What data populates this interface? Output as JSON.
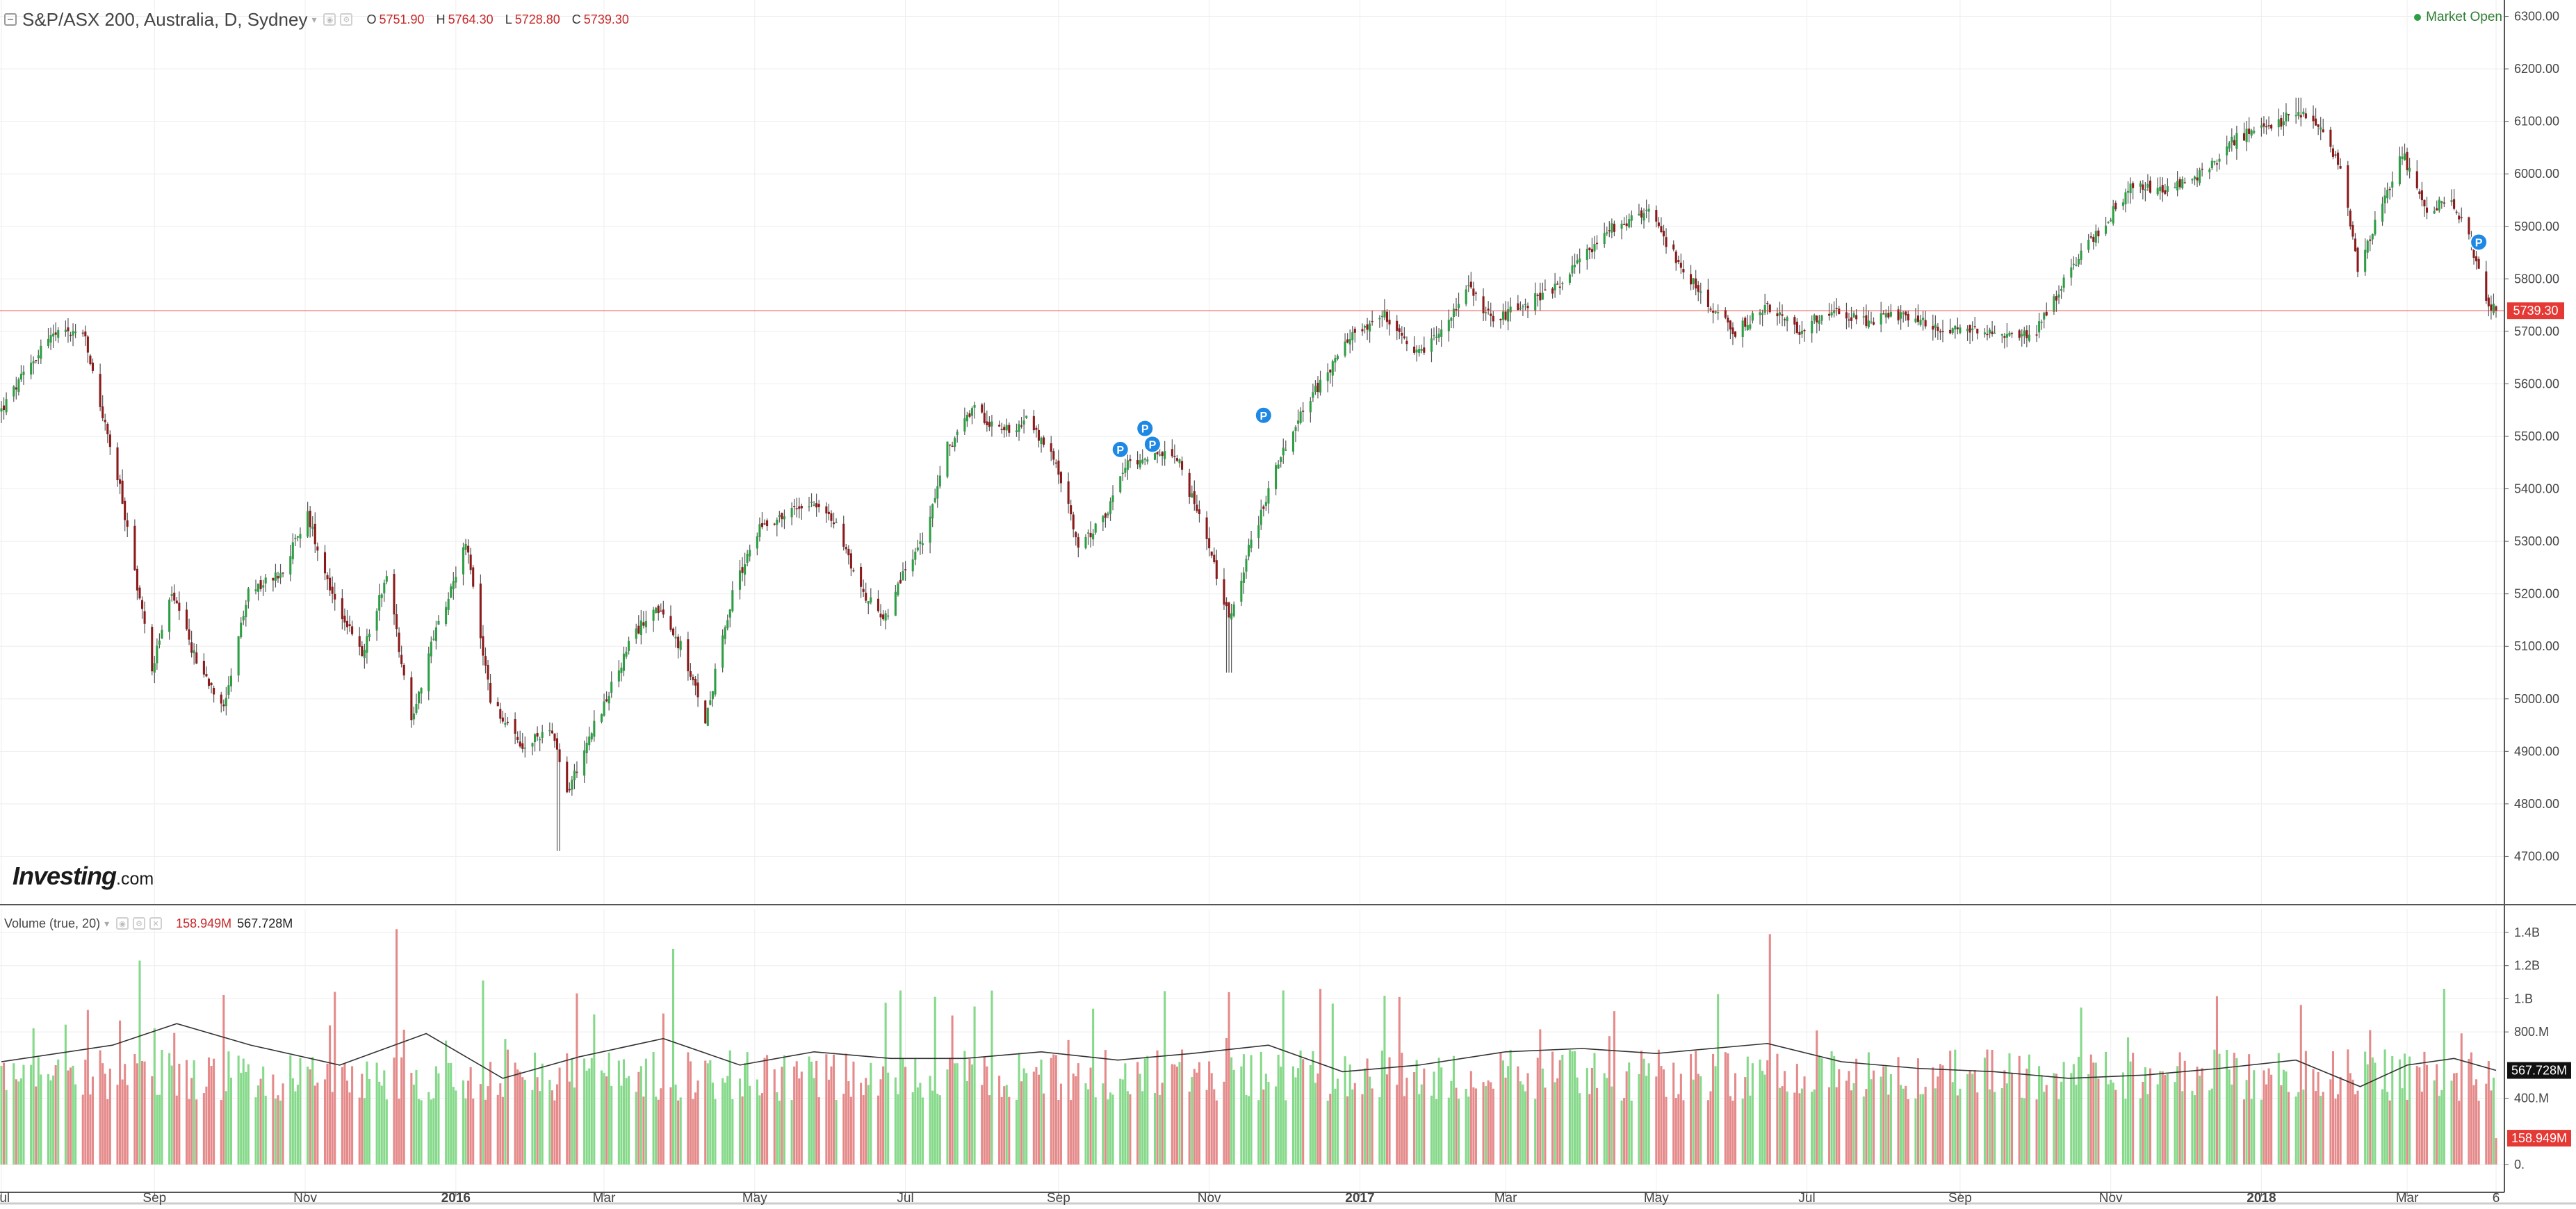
{
  "header": {
    "symbol_title": "S&P/ASX 200, Australia, D, Sydney",
    "open_label": "O",
    "open_value": "5751.90",
    "high_label": "H",
    "high_value": "5764.30",
    "low_label": "L",
    "low_value": "5728.80",
    "close_label": "C",
    "close_value": "5739.30",
    "market_status": "Market Open"
  },
  "volume_legend": {
    "title": "Volume (true, 20)",
    "value_current": "158.949M",
    "value_ma": "567.728M"
  },
  "logo": {
    "main": "Investing",
    "suffix": ".com"
  },
  "colors": {
    "up": "#2e9e44",
    "down": "#8b1a1a",
    "vol_up": "#86d98a",
    "vol_down": "#e58a8a",
    "last_price": "#e53935",
    "marker": "#1e88e5",
    "grid": "#eeeeee"
  },
  "chart_data": {
    "type": "candlestick",
    "price_axis": {
      "ticks": [
        "6300.00",
        "6200.00",
        "6100.00",
        "6000.00",
        "5900.00",
        "5800.00",
        "5700.00",
        "5600.00",
        "5500.00",
        "5400.00",
        "5300.00",
        "5200.00",
        "5100.00",
        "5000.00",
        "4900.00",
        "4800.00",
        "4700.00"
      ],
      "range": [
        4690,
        6310
      ],
      "last_price": 5739.3,
      "last_price_label": "5739.30"
    },
    "volume_axis": {
      "ticks": [
        "1.4B",
        "1.2B",
        "1.B",
        "800.M",
        "400.M",
        "0."
      ],
      "tick_values": [
        1400,
        1200,
        1000,
        800,
        400,
        0
      ],
      "range_millions": [
        0,
        1430
      ],
      "ma_label": "567.728M",
      "current_label": "158.949M",
      "ma_value": 567.728,
      "current_value": 158.949
    },
    "time_axis": {
      "labels": [
        "Jul",
        "Sep",
        "Nov",
        "2016",
        "Mar",
        "May",
        "Jul",
        "Sep",
        "Nov",
        "2017",
        "Mar",
        "May",
        "Jul",
        "Sep",
        "Nov",
        "2018",
        "Mar",
        "6"
      ],
      "bold_labels": [
        "2016",
        "2017",
        "2018"
      ],
      "label_dates": [
        "2015-07-01",
        "2015-09-01",
        "2015-11-01",
        "2016-01-01",
        "2016-03-01",
        "2016-05-01",
        "2016-07-01",
        "2016-09-01",
        "2016-11-01",
        "2017-01-01",
        "2017-03-01",
        "2017-05-01",
        "2017-07-01",
        "2017-09-01",
        "2017-11-01",
        "2018-01-01",
        "2018-03-01",
        "2018-04-06"
      ],
      "range": [
        "2015-07-01",
        "2018-04-06"
      ]
    },
    "price_path": [
      [
        "2015-07-01",
        5550
      ],
      [
        "2015-07-20",
        5690
      ],
      [
        "2015-08-03",
        5700
      ],
      [
        "2015-08-18",
        5400
      ],
      [
        "2015-08-31",
        5060
      ],
      [
        "2015-09-08",
        5200
      ],
      [
        "2015-09-18",
        5070
      ],
      [
        "2015-09-29",
        4990
      ],
      [
        "2015-10-09",
        5200
      ],
      [
        "2015-10-22",
        5240
      ],
      [
        "2015-11-02",
        5350
      ],
      [
        "2015-11-12",
        5200
      ],
      [
        "2015-11-24",
        5080
      ],
      [
        "2015-12-04",
        5240
      ],
      [
        "2015-12-14",
        4960
      ],
      [
        "2015-12-22",
        5100
      ],
      [
        "2016-01-05",
        5300
      ],
      [
        "2016-01-15",
        5000
      ],
      [
        "2016-01-28",
        4900
      ],
      [
        "2016-02-08",
        4950
      ],
      [
        "2016-02-15",
        4820
      ],
      [
        "2016-02-24",
        4930
      ],
      [
        "2016-03-02",
        5000
      ],
      [
        "2016-03-11",
        5100
      ],
      [
        "2016-03-21",
        5180
      ],
      [
        "2016-04-01",
        5100
      ],
      [
        "2016-04-11",
        4960
      ],
      [
        "2016-04-22",
        5200
      ],
      [
        "2016-05-03",
        5330
      ],
      [
        "2016-05-13",
        5350
      ],
      [
        "2016-05-24",
        5380
      ],
      [
        "2016-06-03",
        5330
      ],
      [
        "2016-06-14",
        5200
      ],
      [
        "2016-06-24",
        5150
      ],
      [
        "2016-06-30",
        5240
      ],
      [
        "2016-07-08",
        5300
      ],
      [
        "2016-07-18",
        5480
      ],
      [
        "2016-07-29",
        5550
      ],
      [
        "2016-08-09",
        5510
      ],
      [
        "2016-08-19",
        5530
      ],
      [
        "2016-08-31",
        5450
      ],
      [
        "2016-09-09",
        5290
      ],
      [
        "2016-09-19",
        5340
      ],
      [
        "2016-09-29",
        5450
      ],
      [
        "2016-10-10",
        5470
      ],
      [
        "2016-10-20",
        5450
      ],
      [
        "2016-10-31",
        5300
      ],
      [
        "2016-11-09",
        5150
      ],
      [
        "2016-11-18",
        5300
      ],
      [
        "2016-11-29",
        5450
      ],
      [
        "2016-12-08",
        5550
      ],
      [
        "2016-12-19",
        5620
      ],
      [
        "2016-12-30",
        5700
      ],
      [
        "2017-01-11",
        5730
      ],
      [
        "2017-01-23",
        5650
      ],
      [
        "2017-02-03",
        5700
      ],
      [
        "2017-02-14",
        5780
      ],
      [
        "2017-02-24",
        5720
      ],
      [
        "2017-03-08",
        5750
      ],
      [
        "2017-03-20",
        5780
      ],
      [
        "2017-04-03",
        5850
      ],
      [
        "2017-04-14",
        5900
      ],
      [
        "2017-04-27",
        5930
      ],
      [
        "2017-05-09",
        5840
      ],
      [
        "2017-05-22",
        5750
      ],
      [
        "2017-06-02",
        5700
      ],
      [
        "2017-06-15",
        5750
      ],
      [
        "2017-06-27",
        5700
      ],
      [
        "2017-07-10",
        5740
      ],
      [
        "2017-07-24",
        5720
      ],
      [
        "2017-08-07",
        5730
      ],
      [
        "2017-08-21",
        5710
      ],
      [
        "2017-09-04",
        5700
      ],
      [
        "2017-09-18",
        5690
      ],
      [
        "2017-10-02",
        5700
      ],
      [
        "2017-10-16",
        5820
      ],
      [
        "2017-10-30",
        5910
      ],
      [
        "2017-11-10",
        5980
      ],
      [
        "2017-11-24",
        5970
      ],
      [
        "2017-12-08",
        6000
      ],
      [
        "2017-12-22",
        6070
      ],
      [
        "2018-01-05",
        6090
      ],
      [
        "2018-01-16",
        6120
      ],
      [
        "2018-01-25",
        6080
      ],
      [
        "2018-02-02",
        6020
      ],
      [
        "2018-02-09",
        5820
      ],
      [
        "2018-02-20",
        5950
      ],
      [
        "2018-02-27",
        6040
      ],
      [
        "2018-03-09",
        5930
      ],
      [
        "2018-03-19",
        5950
      ],
      [
        "2018-03-26",
        5880
      ],
      [
        "2018-04-02",
        5760
      ],
      [
        "2018-04-06",
        5739
      ]
    ],
    "wick_extremes": [
      [
        "2016-02-12",
        4710
      ],
      [
        "2016-11-09",
        5050
      ],
      [
        "2018-01-16",
        6145
      ]
    ],
    "event_markers": [
      {
        "date": "2016-09-26",
        "price": 5475,
        "label": "P"
      },
      {
        "date": "2016-10-06",
        "price": 5515,
        "label": "P"
      },
      {
        "date": "2016-10-09",
        "price": 5485,
        "label": "P"
      },
      {
        "date": "2016-11-23",
        "price": 5540,
        "label": "P"
      },
      {
        "date": "2018-03-30",
        "price": 5870,
        "label": "P"
      }
    ],
    "volume_tall_bars": [
      [
        "2015-08-26",
        1230,
        "up"
      ],
      [
        "2015-12-08",
        1420,
        "down"
      ],
      [
        "2016-01-12",
        1110,
        "up"
      ],
      [
        "2016-03-29",
        1300,
        "up"
      ],
      [
        "2016-06-29",
        1050,
        "up"
      ],
      [
        "2016-11-09",
        1040,
        "down"
      ],
      [
        "2016-12-16",
        1060,
        "down"
      ],
      [
        "2017-06-16",
        1390,
        "down"
      ],
      [
        "2018-03-16",
        1060,
        "up"
      ]
    ],
    "volume_base_millions": 620,
    "volume_ma_millions": [
      [
        "2015-07-01",
        620
      ],
      [
        "2015-08-15",
        720
      ],
      [
        "2015-09-10",
        850
      ],
      [
        "2015-10-10",
        720
      ],
      [
        "2015-11-15",
        600
      ],
      [
        "2015-12-20",
        790
      ],
      [
        "2016-01-20",
        520
      ],
      [
        "2016-02-20",
        650
      ],
      [
        "2016-03-25",
        760
      ],
      [
        "2016-04-25",
        600
      ],
      [
        "2016-05-25",
        680
      ],
      [
        "2016-06-25",
        640
      ],
      [
        "2016-07-25",
        640
      ],
      [
        "2016-08-25",
        680
      ],
      [
        "2016-09-25",
        630
      ],
      [
        "2016-10-25",
        670
      ],
      [
        "2016-11-25",
        720
      ],
      [
        "2016-12-25",
        560
      ],
      [
        "2017-01-25",
        600
      ],
      [
        "2017-03-01",
        680
      ],
      [
        "2017-04-01",
        700
      ],
      [
        "2017-05-01",
        670
      ],
      [
        "2017-06-15",
        730
      ],
      [
        "2017-07-15",
        620
      ],
      [
        "2017-08-15",
        580
      ],
      [
        "2017-09-15",
        560
      ],
      [
        "2017-10-15",
        520
      ],
      [
        "2017-11-15",
        540
      ],
      [
        "2017-12-15",
        580
      ],
      [
        "2018-01-15",
        630
      ],
      [
        "2018-02-10",
        470
      ],
      [
        "2018-03-01",
        600
      ],
      [
        "2018-03-20",
        640
      ],
      [
        "2018-04-06",
        568
      ]
    ]
  }
}
